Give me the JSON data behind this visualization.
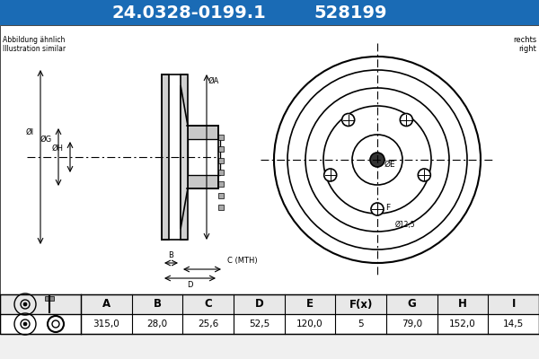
{
  "title_part": "24.0328-0199.1",
  "title_code": "528199",
  "title_bg": "#1a6bb5",
  "title_fg": "#ffffff",
  "subtitle_left": "Abbildung ähnlich\nIllustration similar",
  "subtitle_right": "rechts\nright",
  "table_headers": [
    "A",
    "B",
    "C",
    "D",
    "E",
    "F(x)",
    "G",
    "H",
    "I"
  ],
  "table_values": [
    "315,0",
    "28,0",
    "25,6",
    "52,5",
    "120,0",
    "5",
    "79,0",
    "152,0",
    "14,5"
  ],
  "dim_labels": [
    "ØI",
    "ØG",
    "ØH",
    "ØA",
    "B",
    "C (MTH)",
    "D"
  ],
  "bg_color": "#f0f0f0",
  "diagram_bg": "#ffffff",
  "line_color": "#000000"
}
